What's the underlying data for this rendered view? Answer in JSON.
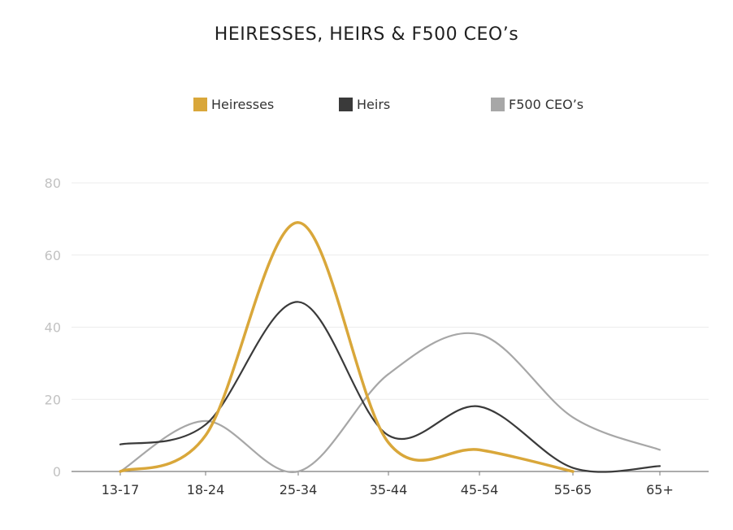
{
  "chart_data": {
    "type": "line",
    "title": "HEIRESSES, HEIRS & F500 CEO’s",
    "categories": [
      "13-17",
      "18-24",
      "25-34",
      "35-44",
      "45-54",
      "55-65",
      "65+"
    ],
    "series": [
      {
        "name": "Heiresses",
        "color": "#d9a73a",
        "values": [
          0,
          10,
          69,
          8,
          6,
          0,
          null
        ]
      },
      {
        "name": "Heirs",
        "color": "#3a3a3a",
        "values": [
          7.5,
          13,
          47,
          10,
          18,
          1,
          1.5
        ]
      },
      {
        "name": "F500 CEO’s",
        "color": "#a7a7a7",
        "values": [
          0,
          14,
          0,
          27,
          38,
          15,
          6
        ]
      }
    ],
    "yticks": [
      0,
      20,
      40,
      60,
      80
    ],
    "ylim": [
      0,
      80
    ],
    "grid": true,
    "legend_position": "top",
    "xlabel": "",
    "ylabel": ""
  }
}
